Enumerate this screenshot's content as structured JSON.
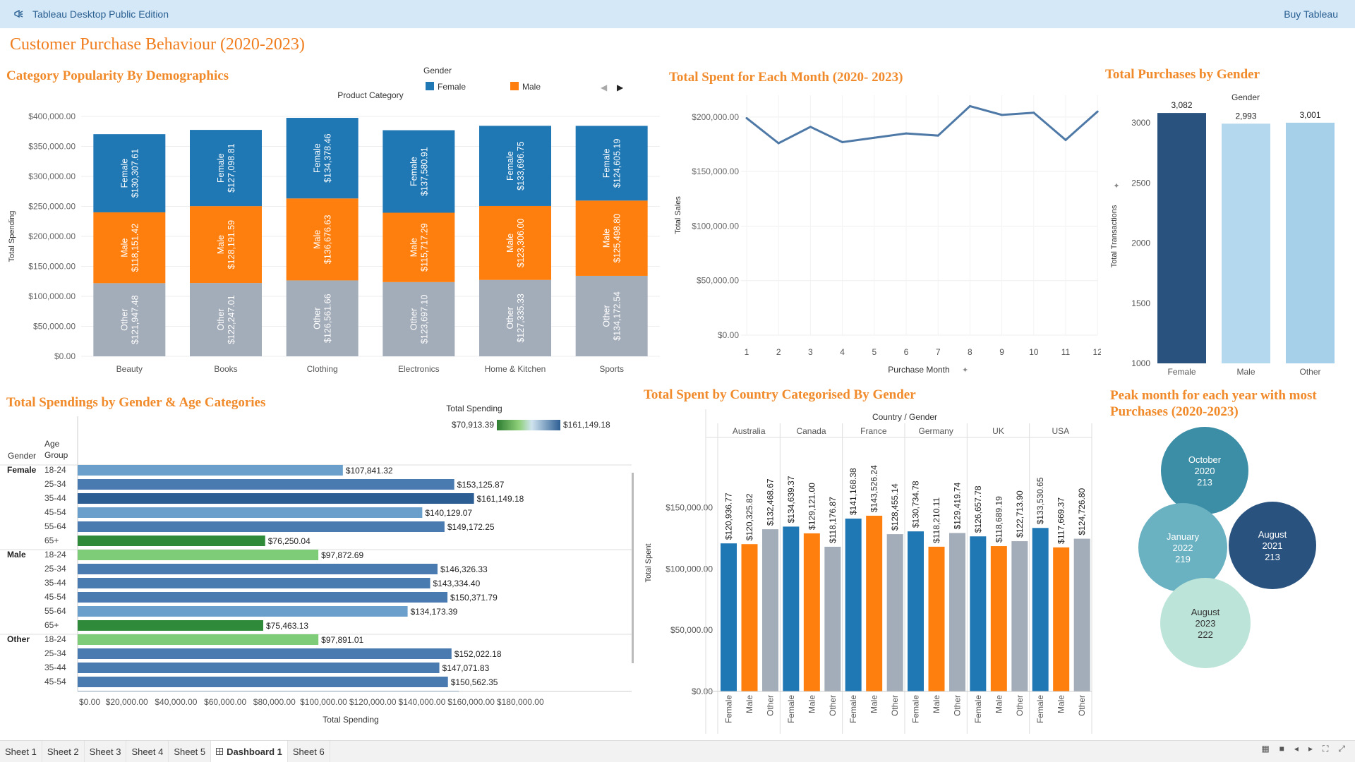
{
  "topbar": {
    "app_title": "Tableau Desktop Public Edition",
    "buy_label": "Buy Tableau"
  },
  "dashboard": {
    "title": "Customer Purchase Behaviour (2020-2023)"
  },
  "sheets": [
    "Sheet 1",
    "Sheet 2",
    "Sheet 3",
    "Sheet 4",
    "Sheet 5",
    "Dashboard 1",
    "Sheet 6"
  ],
  "active_sheet": "Dashboard 1",
  "colors": {
    "female": "#1f77b4",
    "male": "#ff7f0e",
    "other": "#a3acb9",
    "title": "#f08a2a"
  },
  "chart_data": [
    {
      "id": "category",
      "type": "bar",
      "title": "Category Popularity By Demographics",
      "xlabel": "Product Category",
      "ylabel": "Total Spending",
      "legend_title": "Gender",
      "legend": [
        "Female",
        "Male"
      ],
      "categories": [
        "Beauty",
        "Books",
        "Clothing",
        "Electronics",
        "Home & Kitchen",
        "Sports"
      ],
      "ylim": [
        0,
        400000
      ],
      "yticks": [
        "$0.00",
        "$50,000.00",
        "$100,000.00",
        "$150,000.00",
        "$200,000.00",
        "$250,000.00",
        "$300,000.00",
        "$350,000.00",
        "$400,000.00"
      ],
      "series": [
        {
          "name": "Other",
          "values": [
            121947.48,
            122247.01,
            126561.66,
            123697.1,
            127335.33,
            134172.54
          ],
          "labels": [
            "$121,947.48",
            "$122,247.01",
            "$126,561.66",
            "$123,697.10",
            "$127,335.33",
            "$134,172.54"
          ]
        },
        {
          "name": "Male",
          "values": [
            118151.42,
            128191.59,
            136676.63,
            115717.29,
            123306.0,
            125498.8
          ],
          "labels": [
            "$118,151.42",
            "$128,191.59",
            "$136,676.63",
            "$115,717.29",
            "$123,306.00",
            "$125,498.80"
          ]
        },
        {
          "name": "Female",
          "values": [
            130307.61,
            127098.81,
            134378.46,
            137580.91,
            133696.75,
            124605.19
          ],
          "labels": [
            "$130,307.61",
            "$127,098.81",
            "$134,378.46",
            "$137,580.91",
            "$133,696.75",
            "$124,605.19"
          ]
        }
      ]
    },
    {
      "id": "monthly",
      "type": "line",
      "title": "Total Spent for Each Month (2020- 2023)",
      "xlabel": "Purchase Month",
      "ylabel": "Total Sales",
      "x": [
        "1",
        "2",
        "3",
        "4",
        "5",
        "6",
        "7",
        "8",
        "9",
        "10",
        "11",
        "12"
      ],
      "values": [
        199000,
        176000,
        191000,
        177000,
        181000,
        185000,
        183000,
        210000,
        202000,
        204000,
        179000,
        205000
      ],
      "ylim": [
        0,
        220000
      ],
      "yticks": [
        "$0.00",
        "$50,000.00",
        "$100,000.00",
        "$150,000.00",
        "$200,000.00"
      ]
    },
    {
      "id": "gender",
      "type": "bar",
      "title": "Total Purchases by Gender",
      "subtitle": "Gender",
      "ylabel": "Total Transactions",
      "categories": [
        "Female",
        "Male",
        "Other"
      ],
      "values": [
        3082,
        2993,
        3001
      ],
      "labels": [
        "3,082",
        "2,993",
        "3,001"
      ],
      "colors": [
        "#29527f",
        "#b4d8ee",
        "#a6cfea"
      ],
      "ylim": [
        1000,
        3200
      ],
      "yticks": [
        "1000",
        "1500",
        "2000",
        "2500",
        "3000"
      ]
    },
    {
      "id": "agegroups",
      "type": "bar",
      "title": "Total Spendings by Gender & Age Categories",
      "legend_title": "Total Spending",
      "legend_min": "$70,913.39",
      "legend_max": "$161,149.18",
      "xlabel": "Total Spending",
      "col_header_1": "Gender",
      "col_header_2": "Age Group",
      "xlim": [
        0,
        190000
      ],
      "xticks": [
        "$0.00",
        "$20,000.00",
        "$40,000.00",
        "$60,000.00",
        "$80,000.00",
        "$100,000.00",
        "$120,000.00",
        "$140,000.00",
        "$160,000.00",
        "$180,000.00"
      ],
      "groups": [
        {
          "name": "Female",
          "rows": [
            {
              "age": "18-24",
              "value": 107841.32,
              "label": "$107,841.32"
            },
            {
              "age": "25-34",
              "value": 153125.87,
              "label": "$153,125.87"
            },
            {
              "age": "35-44",
              "value": 161149.18,
              "label": "$161,149.18"
            },
            {
              "age": "45-54",
              "value": 140129.07,
              "label": "$140,129.07"
            },
            {
              "age": "55-64",
              "value": 149172.25,
              "label": "$149,172.25"
            },
            {
              "age": "65+",
              "value": 76250.04,
              "label": "$76,250.04"
            }
          ]
        },
        {
          "name": "Male",
          "rows": [
            {
              "age": "18-24",
              "value": 97872.69,
              "label": "$97,872.69"
            },
            {
              "age": "25-34",
              "value": 146326.33,
              "label": "$146,326.33"
            },
            {
              "age": "35-44",
              "value": 143334.4,
              "label": "$143,334.40"
            },
            {
              "age": "45-54",
              "value": 150371.79,
              "label": "$150,371.79"
            },
            {
              "age": "55-64",
              "value": 134173.39,
              "label": "$134,173.39"
            },
            {
              "age": "65+",
              "value": 75463.13,
              "label": "$75,463.13"
            }
          ]
        },
        {
          "name": "Other",
          "rows": [
            {
              "age": "18-24",
              "value": 97891.01,
              "label": "$97,891.01"
            },
            {
              "age": "25-34",
              "value": 152022.18,
              "label": "$152,022.18"
            },
            {
              "age": "35-44",
              "value": 147071.83,
              "label": "$147,071.83"
            },
            {
              "age": "45-54",
              "value": 150562.35,
              "label": "$150,562.35"
            }
          ]
        }
      ]
    },
    {
      "id": "country",
      "type": "bar",
      "title": "Total Spent by Country Categorised By Gender",
      "header": "Country / Gender",
      "ylabel": "Total Spent",
      "ylim": [
        0,
        170000
      ],
      "yticks": [
        "$0.00",
        "$50,000.00",
        "$100,000.00",
        "$150,000.00"
      ],
      "genders": [
        "Female",
        "Male",
        "Other"
      ],
      "countries": [
        {
          "name": "Australia",
          "values": [
            120936.77,
            120325.82,
            132468.67
          ],
          "labels": [
            "$120,936.77",
            "$120,325.82",
            "$132,468.67"
          ]
        },
        {
          "name": "Canada",
          "values": [
            134639.37,
            129121.0,
            118176.87
          ],
          "labels": [
            "$134,639.37",
            "$129,121.00",
            "$118,176.87"
          ]
        },
        {
          "name": "France",
          "values": [
            141168.38,
            143526.24,
            128455.14
          ],
          "labels": [
            "$141,168.38",
            "$143,526.24",
            "$128,455.14"
          ]
        },
        {
          "name": "Germany",
          "values": [
            130734.78,
            118210.11,
            129419.74
          ],
          "labels": [
            "$130,734.78",
            "$118,210.11",
            "$129,419.74"
          ]
        },
        {
          "name": "UK",
          "values": [
            126657.78,
            118689.19,
            122713.9
          ],
          "labels": [
            "$126,657.78",
            "$118,689.19",
            "$122,713.90"
          ]
        },
        {
          "name": "USA",
          "values": [
            133530.65,
            117669.37,
            124726.8
          ],
          "labels": [
            "$133,530.65",
            "$117,669.37",
            "$124,726.80"
          ]
        }
      ]
    },
    {
      "id": "peak",
      "type": "bubble",
      "title": "Peak month for each year with most Purchases (2020-2023)",
      "bubbles": [
        {
          "month": "October",
          "year": "2020",
          "count": "213",
          "color": "#3b8ea5"
        },
        {
          "month": "January",
          "year": "2022",
          "count": "219",
          "color": "#6ab1c1"
        },
        {
          "month": "August",
          "year": "2021",
          "count": "213",
          "color": "#29527f"
        },
        {
          "month": "August",
          "year": "2023",
          "count": "222",
          "color": "#bde4d8"
        }
      ]
    }
  ]
}
